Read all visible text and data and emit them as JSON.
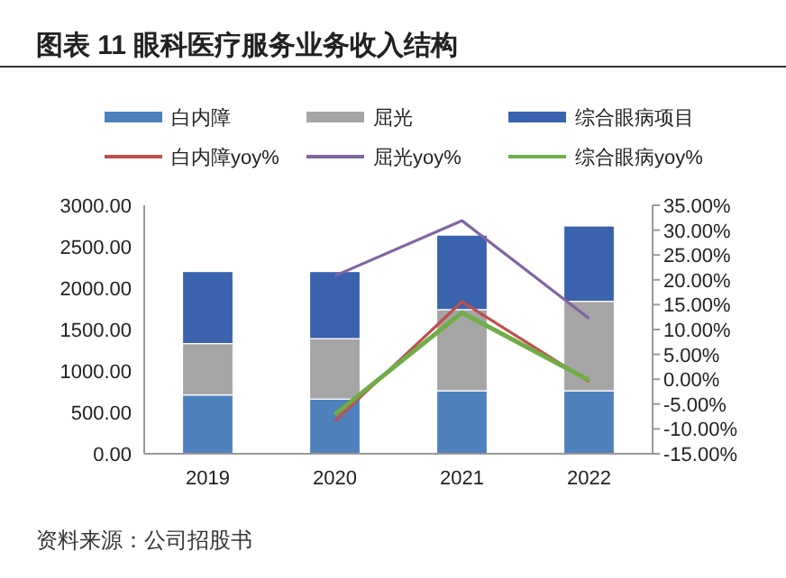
{
  "chart_data": {
    "type": "bar",
    "title": "图表 11 眼科医疗服务业务收入结构",
    "stacked": true,
    "legend": "top",
    "grid": false,
    "categories": [
      "2019",
      "2020",
      "2021",
      "2022"
    ],
    "series": [
      {
        "name": "白内障",
        "color": "#4f81bd",
        "values": [
          710,
          660,
          760,
          760
        ]
      },
      {
        "name": "屈光",
        "color": "#a5a5a5",
        "values": [
          620,
          730,
          980,
          1080
        ]
      },
      {
        "name": "综合眼病项目",
        "color": "#3a62ad",
        "values": [
          870,
          810,
          900,
          910
        ]
      },
      {
        "name": "白内障yoy%",
        "type": "line",
        "axis": "y2",
        "color": "#c0504d",
        "values": [
          null,
          -8.4,
          15.6,
          -0.5
        ]
      },
      {
        "name": "屈光yoy%",
        "type": "line",
        "axis": "y2",
        "color": "#8064a2",
        "values": [
          null,
          20.8,
          31.9,
          12.2
        ]
      },
      {
        "name": "综合眼病yoy%",
        "type": "line",
        "axis": "y2",
        "color": "#70ad47",
        "values": [
          null,
          -7.1,
          13.4,
          -0.2
        ]
      }
    ],
    "ylim": [
      0,
      3000
    ],
    "yticks": [
      {
        "value": 0,
        "label": "0.00"
      },
      {
        "value": 500,
        "label": "500.00"
      },
      {
        "value": 1000,
        "label": "1000.00"
      },
      {
        "value": 1500,
        "label": "1500.00"
      },
      {
        "value": 2000,
        "label": "2000.00"
      },
      {
        "value": 2500,
        "label": "2500.00"
      },
      {
        "value": 3000,
        "label": "3000.00"
      }
    ],
    "y2lim": [
      -15,
      35
    ],
    "y2ticks": [
      {
        "value": -15,
        "label": "-15.00%"
      },
      {
        "value": -10,
        "label": "-10.00%"
      },
      {
        "value": -5,
        "label": "-5.00%"
      },
      {
        "value": 0,
        "label": "0.00%"
      },
      {
        "value": 5,
        "label": "5.00%"
      },
      {
        "value": 10,
        "label": "10.00%"
      },
      {
        "value": 15,
        "label": "15.00%"
      },
      {
        "value": 20,
        "label": "20.00%"
      },
      {
        "value": 25,
        "label": "25.00%"
      },
      {
        "value": 30,
        "label": "30.00%"
      },
      {
        "value": 35,
        "label": "35.00%"
      }
    ],
    "annotations": [
      "资料来源：公司招股书"
    ]
  }
}
